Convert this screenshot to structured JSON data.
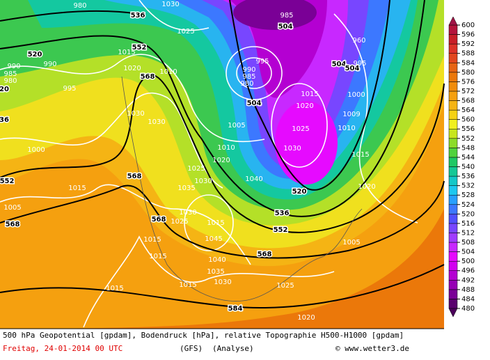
{
  "footer": {
    "description": "500 hPa Geopotential [gpdam], Bodendruck [hPa], relative Topographie H500-H1000 [gpdam]",
    "date": "Freitag, 24-01-2014  00 UTC",
    "model": "(GFS)",
    "run": "(Analyse)",
    "credit": "© www.wetter3.de"
  },
  "colorbar": {
    "ticks": [
      480,
      484,
      488,
      492,
      496,
      500,
      504,
      508,
      512,
      516,
      520,
      524,
      528,
      532,
      536,
      540,
      544,
      548,
      552,
      556,
      560,
      564,
      568,
      572,
      576,
      580,
      584,
      588,
      592,
      596,
      600
    ],
    "colors": [
      "#5a006e",
      "#7a0096",
      "#9600b4",
      "#b400d2",
      "#d200f0",
      "#e60aff",
      "#c828ff",
      "#a03cff",
      "#7846ff",
      "#5050ff",
      "#3c78ff",
      "#28a0ff",
      "#1ec8f0",
      "#14c8c8",
      "#14c896",
      "#1ec864",
      "#50d23c",
      "#8cdc28",
      "#c8e61e",
      "#f0f01e",
      "#f5d214",
      "#f5b414",
      "#f5a00f",
      "#f08c0a",
      "#eb780a",
      "#e66414",
      "#e1461e",
      "#dc3228",
      "#c81e28",
      "#b4143c"
    ],
    "under_color": "#4b005a",
    "over_color": "#a01446"
  },
  "geopotential_labels": [
    "536",
    "520",
    "552",
    "568",
    "504",
    "504",
    "504",
    "504",
    "552",
    "568",
    "568",
    "568",
    "520",
    "536",
    "552",
    "568",
    "584",
    "20",
    "36"
  ],
  "pressure_labels": [
    "1030",
    "980",
    "985",
    "960",
    "990",
    "985",
    "980",
    "990",
    "995",
    "1015",
    "1020",
    "1010",
    "1025",
    "1030",
    "1030",
    "995",
    "990",
    "985",
    "980",
    "1015",
    "1020",
    "1025",
    "1030",
    "1005",
    "1010",
    "1020",
    "1025",
    "1030",
    "1035",
    "1040",
    "1000",
    "1015",
    "1005",
    "1030",
    "1025",
    "1015",
    "1045",
    "1040",
    "1035",
    "1030",
    "1015",
    "1015",
    "1015",
    "1015",
    "1025",
    "1020",
    "1005",
    "1020",
    "1010",
    "1009",
    "1015",
    "1000",
    "995"
  ]
}
